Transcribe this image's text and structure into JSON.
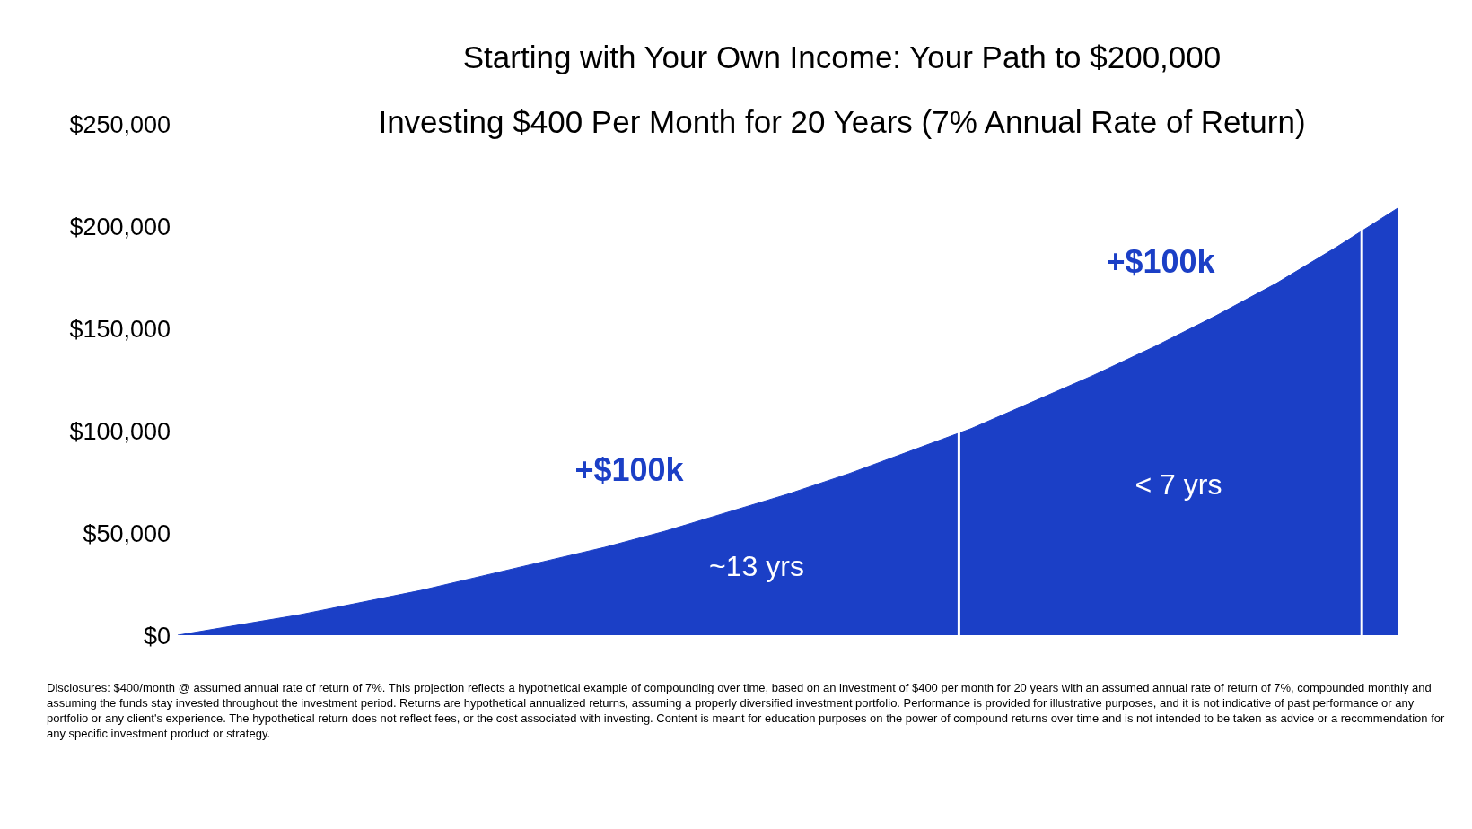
{
  "chart_data": {
    "type": "area",
    "title": "Starting with Your Own Income: Your Path to $200,000",
    "subtitle": "Investing $400 Per Month for 20 Years (7% Annual Rate of Return)",
    "categories": [
      null,
      null,
      null,
      null,
      null,
      null,
      null,
      null,
      null,
      null,
      null,
      null,
      null,
      null,
      null,
      null,
      null,
      null,
      null,
      null,
      null
    ],
    "series": [
      {
        "color": "#1b3fc6",
        "values": [
          0,
          5000,
          10000,
          16000,
          22000,
          29000,
          36000,
          43000,
          51000,
          60000,
          69000,
          79000,
          90000,
          101000,
          114000,
          127000,
          141000,
          156000,
          172000,
          190000,
          209000
        ]
      }
    ],
    "ylim": [
      0,
      250000
    ],
    "yticks": [
      {
        "value": 0,
        "label": "$0"
      },
      {
        "value": 50000,
        "label": "$50,000"
      },
      {
        "value": 100000,
        "label": "$100,000"
      },
      {
        "value": 150000,
        "label": "$150,000"
      },
      {
        "value": 200000,
        "label": "$200,000"
      },
      {
        "value": 250000,
        "label": "$250,000"
      }
    ],
    "tick_labels": "y",
    "annotations": [
      "+$100k",
      "~13 yrs",
      "+$100k",
      "< 7 yrs",
      "Disclosures: $400/month @ assumed annual rate of return of 7%. This projection reflects a hypothetical example of compounding over time, based on an investment of $400 per month for 20 years with an assumed annual rate of return of 7%, compounded monthly and assuming the funds stay invested throughout the investment period. Returns are hypothetical annualized returns, assuming a properly diversified investment portfolio. Performance is provided for illustrative purposes, and it is not indicative of past performance or any portfolio or any client's experience. The hypothetical return does not reflect fees, or the cost associated with investing. Content is meant for education purposes on the power of compound returns over time and is not intended to be taken as advice or a recommendation for any specific investment product or strategy."
    ]
  }
}
